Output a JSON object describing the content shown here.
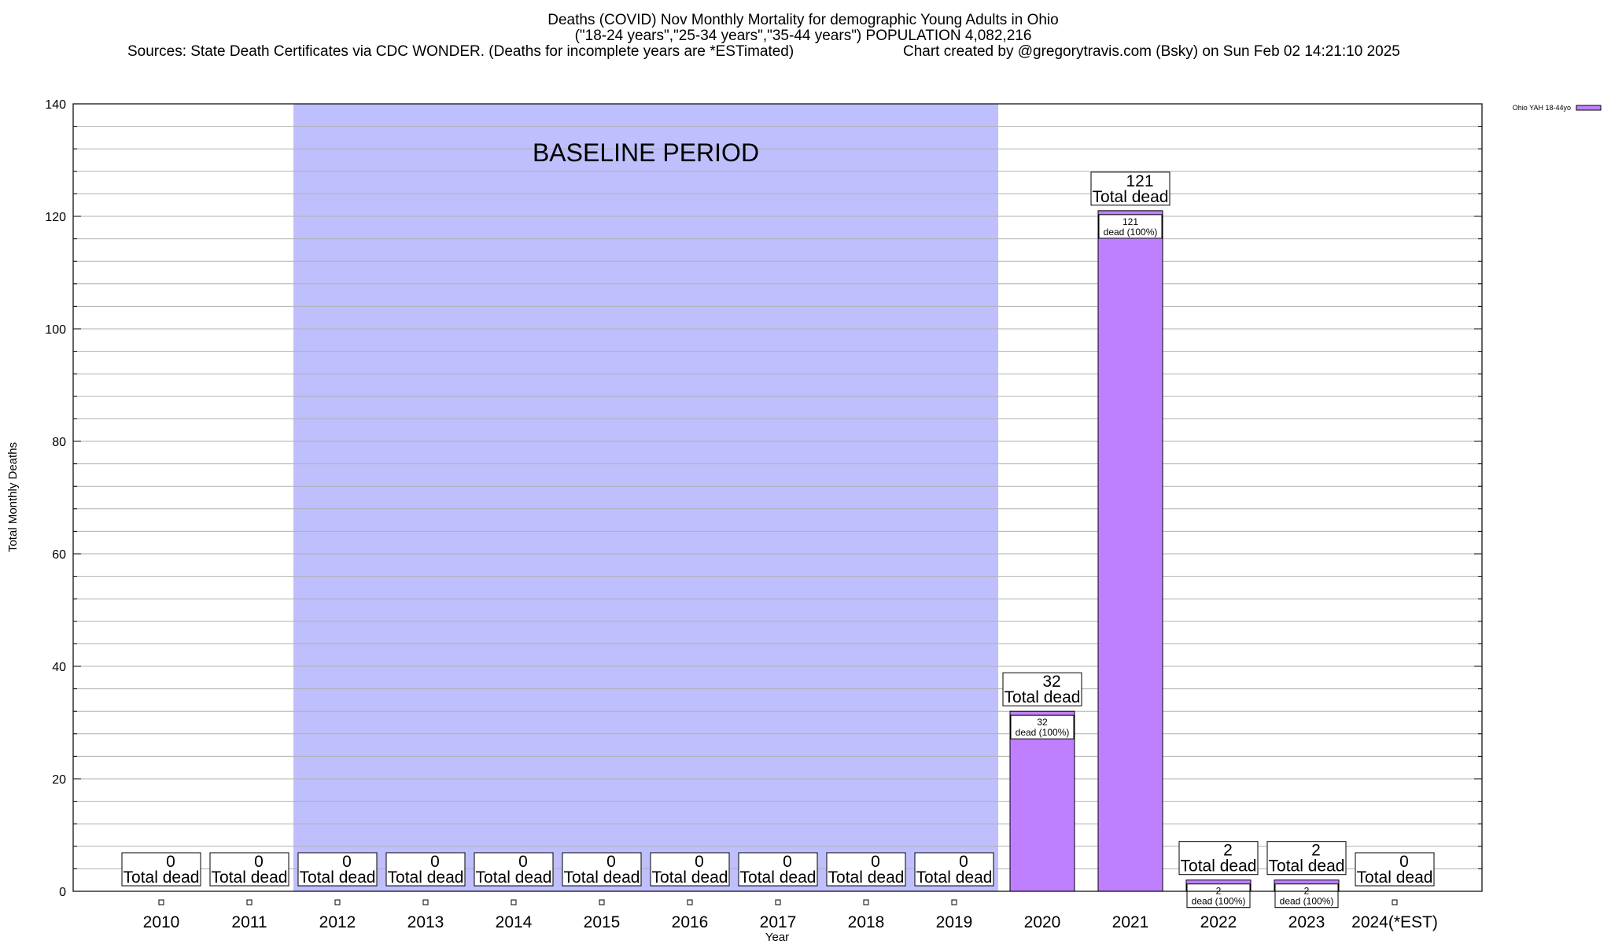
{
  "title": {
    "line1": "Deaths (COVID) Nov Monthly Mortality for demographic Young Adults in Ohio",
    "line2": "(\"18-24 years\",\"25-34 years\",\"35-44 years\") POPULATION 4,082,216",
    "line3_left": "Sources: State Death Certificates via CDC WONDER. (Deaths for incomplete years are *ESTimated)",
    "line3_right": "Chart created by @gregorytravis.com (Bsky) on Sun Feb 02 14:21:10 2025"
  },
  "colors": {
    "bar_fill": "#bf80ff",
    "baseline_fill": "#bfbffd",
    "grid": "#b0b0b0",
    "axis": "#000000"
  },
  "chart_data": {
    "type": "bar",
    "xlabel": "Year",
    "ylabel": "Total Monthly Deaths",
    "ylim": [
      0,
      140
    ],
    "yticks": [
      0,
      20,
      40,
      60,
      80,
      100,
      120,
      140
    ],
    "grid": "horizontal",
    "legend_position": "top-right",
    "categories": [
      "2010",
      "2011",
      "2012",
      "2013",
      "2014",
      "2015",
      "2016",
      "2017",
      "2018",
      "2019",
      "2020",
      "2021",
      "2022",
      "2023",
      "2024(*EST)"
    ],
    "series": [
      {
        "name": "Ohio YAH 18-44yo",
        "values": [
          0,
          0,
          0,
          0,
          0,
          0,
          0,
          0,
          0,
          0,
          32,
          121,
          2,
          2,
          0
        ]
      }
    ],
    "total_label_suffix": "Total dead",
    "inner_label_suffix": "dead (100%)",
    "baseline_period": {
      "label": "BASELINE PERIOD",
      "start": "2012",
      "end": "2019"
    }
  }
}
